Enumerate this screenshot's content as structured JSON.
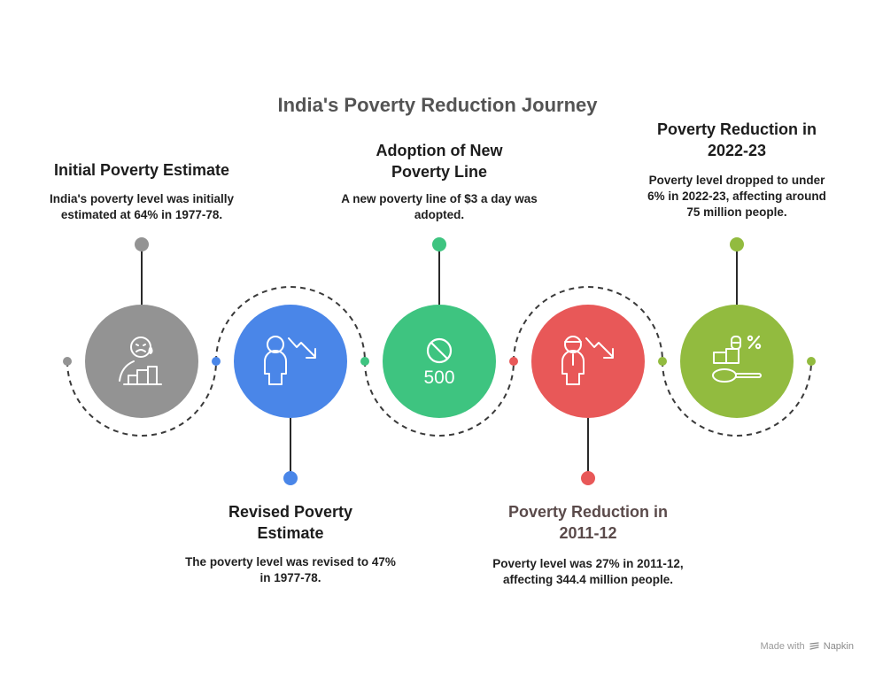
{
  "title": "India's Poverty Reduction Journey",
  "steps": [
    {
      "heading": "Initial Poverty Estimate",
      "description": "India's poverty level was initially estimated at 64% in 1977-78.",
      "icon": "sad-person-low-bars-icon",
      "color": "#939393"
    },
    {
      "heading": "Revised Poverty Estimate",
      "description": "The poverty level was revised to 47% in 1977-78.",
      "icon": "person-down-arrow-icon",
      "color": "#4a86e8"
    },
    {
      "heading": "Adoption of New Poverty Line",
      "description": "A new poverty line of $3 a day was adopted.",
      "icon": "no-500-banknote-icon",
      "icon_text": "500",
      "color": "#3ec480"
    },
    {
      "heading": "Poverty Reduction in 2011-12",
      "description": "Poverty level was 27% in 2011-12, affecting 344.4 million people.",
      "icon": "person-cap-down-arrow-icon",
      "color": "#e85858"
    },
    {
      "heading": "Poverty Reduction in 2022-23",
      "description": "Poverty level dropped to under 6% in 2022-23, affecting around 75 million people.",
      "icon": "boxes-spoon-percent-icon",
      "color": "#92bb3f"
    }
  ],
  "footer": {
    "made_with": "Made with",
    "brand": "Napkin",
    "brand_icon": "napkin-logo-icon"
  }
}
